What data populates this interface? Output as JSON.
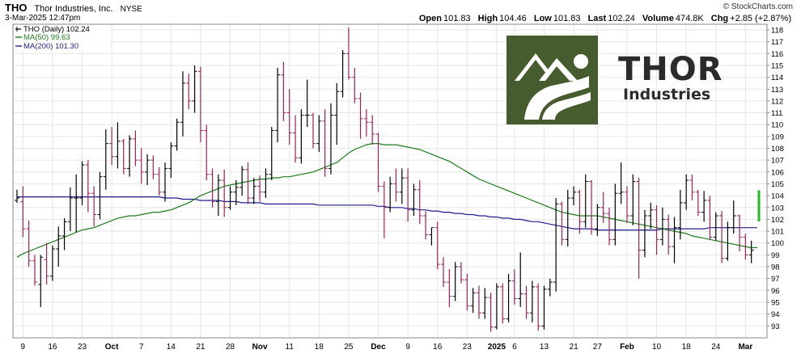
{
  "header": {
    "symbol": "THO",
    "company": "Thor Industries, Inc.",
    "exchange": "NYSE",
    "datetime": "3-Mar-2025 12:47pm",
    "copyright": "© StockCharts.com",
    "open_label": "Open",
    "open": "101.83",
    "high_label": "High",
    "high": "104.46",
    "low_label": "Low",
    "low": "101.83",
    "last_label": "Last",
    "last": "102.24",
    "volume_label": "Volume",
    "volume": "474.8K",
    "chg_label": "Chg",
    "chg": "+2.85 (+2.87%)"
  },
  "legend": {
    "price": "THO (Daily) 102.24",
    "ma50": "MA(50) 99.63",
    "ma200": "MA(200) 101.30"
  },
  "logo": {
    "word": "THOR",
    "sub": "Industries"
  },
  "colors": {
    "up": "#000000",
    "down": "#a0205a",
    "ma50": "#1e7a1e",
    "ma200": "#1f1f8c",
    "last_marker": "#22bb22",
    "logo_green": "#465c2f"
  },
  "chart_data": {
    "type": "ohlc",
    "ylim": [
      92,
      118.5
    ],
    "y_ticks": [
      93,
      94,
      95,
      96,
      97,
      98,
      99,
      100,
      101,
      102,
      103,
      104,
      105,
      106,
      107,
      108,
      109,
      110,
      111,
      112,
      113,
      114,
      115,
      116,
      117,
      118
    ],
    "x_labels": [
      "9",
      "16",
      "23",
      "Oct",
      "7",
      "14",
      "21",
      "28",
      "Nov",
      "11",
      "18",
      "25",
      "Dec",
      "9",
      "16",
      "23",
      "2025",
      "6",
      "13",
      "21",
      "27",
      "Feb",
      "10",
      "18",
      "24",
      "Mar"
    ],
    "x_label_bars": [
      1,
      6,
      11,
      16,
      21,
      26,
      31,
      36,
      41,
      46,
      51,
      56,
      61,
      66,
      71,
      76,
      81,
      84,
      89,
      94,
      98,
      103,
      108,
      113,
      118,
      123
    ],
    "bold_labels": [
      "Oct",
      "Nov",
      "Dec",
      "2025",
      "Feb",
      "Mar"
    ],
    "bars": [
      [
        103.6,
        104.5,
        103.4,
        103.8
      ],
      [
        103.5,
        104.8,
        100.5,
        101.2
      ],
      [
        101.2,
        101.9,
        98.0,
        98.5
      ],
      [
        98.5,
        99.0,
        96.4,
        96.7
      ],
      [
        96.5,
        99.0,
        94.6,
        98.8
      ],
      [
        98.6,
        100.0,
        96.5,
        97.2
      ],
      [
        97.2,
        99.8,
        96.8,
        99.5
      ],
      [
        99.5,
        101.4,
        98.0,
        100.6
      ],
      [
        100.6,
        102.1,
        99.4,
        101.8
      ],
      [
        101.8,
        104.7,
        101.0,
        103.8
      ],
      [
        103.8,
        105.8,
        100.9,
        103.8
      ],
      [
        103.8,
        106.9,
        103.2,
        106.6
      ],
      [
        106.6,
        107.0,
        102.6,
        104.2
      ],
      [
        104.2,
        104.8,
        101.4,
        102.4
      ],
      [
        102.4,
        106.0,
        102.0,
        105.6
      ],
      [
        105.6,
        109.6,
        104.5,
        108.4
      ],
      [
        108.4,
        109.8,
        106.6,
        107.3
      ],
      [
        107.3,
        110.2,
        106.3,
        108.6
      ],
      [
        108.6,
        108.8,
        105.8,
        106.3
      ],
      [
        106.3,
        109.1,
        105.6,
        108.8
      ],
      [
        108.8,
        109.5,
        106.5,
        107.0
      ],
      [
        107.0,
        108.0,
        105.0,
        106.0
      ],
      [
        106.0,
        107.5,
        104.9,
        107.0
      ],
      [
        107.0,
        107.4,
        105.4,
        105.8
      ],
      [
        105.8,
        106.4,
        104.0,
        104.3
      ],
      [
        104.3,
        106.8,
        103.5,
        106.3
      ],
      [
        106.3,
        108.5,
        105.5,
        108.2
      ],
      [
        108.2,
        110.5,
        107.8,
        110.2
      ],
      [
        110.2,
        114.5,
        109.0,
        113.5
      ],
      [
        113.5,
        114.3,
        111.3,
        112.0
      ],
      [
        112.0,
        115.0,
        111.0,
        114.5
      ],
      [
        114.5,
        114.9,
        108.5,
        109.5
      ],
      [
        109.5,
        110.0,
        105.3,
        105.8
      ],
      [
        105.8,
        106.3,
        103.0,
        103.5
      ],
      [
        103.5,
        105.8,
        102.3,
        105.3
      ],
      [
        105.3,
        106.2,
        102.2,
        103.0
      ],
      [
        103.0,
        104.8,
        102.8,
        104.3
      ],
      [
        104.3,
        105.3,
        103.2,
        104.7
      ],
      [
        104.7,
        106.5,
        104.0,
        106.2
      ],
      [
        106.2,
        106.8,
        103.3,
        103.8
      ],
      [
        103.8,
        105.5,
        103.3,
        104.8
      ],
      [
        104.8,
        105.7,
        103.5,
        104.3
      ],
      [
        104.3,
        106.3,
        103.8,
        105.8
      ],
      [
        105.8,
        109.8,
        105.3,
        109.5
      ],
      [
        109.5,
        114.8,
        108.5,
        114.2
      ],
      [
        114.2,
        115.3,
        110.3,
        111.0
      ],
      [
        111.0,
        113.0,
        108.3,
        109.3
      ],
      [
        109.3,
        110.8,
        106.8,
        107.2
      ],
      [
        107.2,
        111.3,
        106.7,
        110.8
      ],
      [
        110.8,
        113.8,
        109.8,
        110.8
      ],
      [
        110.8,
        111.0,
        108.0,
        108.4
      ],
      [
        108.4,
        110.8,
        107.7,
        110.3
      ],
      [
        110.3,
        111.3,
        105.6,
        106.3
      ],
      [
        106.3,
        111.8,
        105.8,
        110.8
      ],
      [
        110.8,
        113.5,
        108.3,
        112.8
      ],
      [
        112.8,
        116.3,
        112.3,
        116.0
      ],
      [
        116.0,
        118.2,
        113.8,
        114.0
      ],
      [
        114.0,
        114.8,
        111.8,
        112.2
      ],
      [
        112.2,
        112.7,
        108.8,
        110.5
      ],
      [
        110.5,
        111.3,
        109.0,
        110.2
      ],
      [
        110.2,
        110.8,
        108.3,
        109.2
      ],
      [
        109.2,
        109.3,
        104.3,
        104.8
      ],
      [
        104.8,
        105.2,
        100.4,
        103.0
      ],
      [
        103.0,
        105.6,
        102.6,
        105.0
      ],
      [
        105.0,
        106.3,
        103.5,
        104.3
      ],
      [
        104.3,
        106.3,
        103.3,
        105.5
      ],
      [
        105.5,
        106.3,
        101.8,
        102.8
      ],
      [
        102.8,
        105.0,
        102.3,
        104.5
      ],
      [
        104.5,
        105.3,
        101.6,
        102.3
      ],
      [
        102.3,
        102.7,
        100.3,
        100.7
      ],
      [
        100.7,
        101.3,
        99.8,
        101.3
      ],
      [
        101.3,
        101.8,
        97.8,
        98.2
      ],
      [
        98.2,
        98.8,
        96.3,
        96.7
      ],
      [
        96.7,
        97.8,
        94.6,
        95.5
      ],
      [
        95.5,
        98.4,
        95.1,
        98.0
      ],
      [
        98.0,
        98.4,
        96.6,
        96.9
      ],
      [
        96.9,
        97.4,
        94.3,
        94.7
      ],
      [
        94.7,
        96.2,
        94.1,
        95.8
      ],
      [
        95.8,
        96.4,
        93.6,
        94.1
      ],
      [
        94.1,
        96.2,
        93.6,
        95.4
      ],
      [
        95.4,
        95.8,
        92.5,
        92.9
      ],
      [
        92.9,
        96.6,
        92.7,
        96.3
      ],
      [
        96.3,
        96.6,
        93.2,
        93.6
      ],
      [
        93.6,
        97.4,
        93.3,
        96.8
      ],
      [
        96.8,
        97.8,
        94.8,
        95.3
      ],
      [
        95.3,
        99.2,
        94.6,
        95.7
      ],
      [
        95.7,
        96.4,
        93.6,
        94.1
      ],
      [
        94.1,
        96.8,
        93.3,
        96.3
      ],
      [
        96.3,
        96.6,
        92.6,
        93.0
      ],
      [
        93.0,
        96.4,
        92.7,
        96.1
      ],
      [
        96.1,
        97.0,
        95.5,
        96.7
      ],
      [
        96.7,
        103.8,
        95.9,
        103.3
      ],
      [
        103.3,
        103.5,
        99.8,
        100.3
      ],
      [
        100.3,
        104.5,
        99.7,
        103.8
      ],
      [
        103.8,
        104.8,
        103.2,
        104.3
      ],
      [
        104.3,
        104.5,
        100.8,
        101.8
      ],
      [
        101.8,
        105.8,
        101.3,
        105.2
      ],
      [
        105.2,
        105.3,
        100.7,
        101.2
      ],
      [
        101.2,
        103.3,
        100.6,
        103.0
      ],
      [
        103.0,
        104.3,
        101.7,
        102.5
      ],
      [
        102.5,
        103.0,
        99.8,
        100.3
      ],
      [
        100.3,
        105.0,
        99.8,
        104.2
      ],
      [
        104.2,
        106.8,
        103.3,
        104.3
      ],
      [
        104.3,
        104.8,
        101.7,
        102.3
      ],
      [
        102.3,
        105.8,
        101.5,
        105.2
      ],
      [
        105.2,
        105.5,
        97.0,
        99.4
      ],
      [
        99.4,
        102.8,
        98.8,
        102.3
      ],
      [
        102.3,
        103.4,
        101.2,
        102.8
      ],
      [
        102.8,
        103.2,
        99.0,
        100.3
      ],
      [
        100.3,
        103.0,
        99.8,
        102.0
      ],
      [
        102.0,
        102.4,
        99.0,
        99.7
      ],
      [
        99.7,
        102.2,
        98.3,
        101.3
      ],
      [
        101.3,
        104.5,
        100.3,
        103.4
      ],
      [
        103.4,
        105.8,
        102.8,
        105.3
      ],
      [
        105.3,
        105.8,
        103.6,
        104.3
      ],
      [
        104.3,
        104.5,
        102.3,
        102.6
      ],
      [
        102.6,
        104.4,
        101.8,
        103.6
      ],
      [
        103.6,
        104.0,
        100.3,
        100.5
      ],
      [
        100.5,
        102.6,
        100.2,
        102.3
      ],
      [
        102.3,
        102.7,
        98.3,
        98.7
      ],
      [
        98.7,
        101.8,
        98.5,
        101.3
      ],
      [
        101.3,
        103.6,
        100.8,
        102.3
      ],
      [
        102.3,
        102.4,
        99.3,
        100.5
      ],
      [
        100.5,
        100.8,
        98.6,
        99.0
      ],
      [
        99.0,
        100.2,
        98.3,
        99.4
      ]
    ],
    "ma50": [
      98.8,
      99.1,
      99.3,
      99.5,
      99.7,
      99.9,
      100.1,
      100.3,
      100.5,
      100.7,
      100.9,
      101.1,
      101.2,
      101.3,
      101.5,
      101.7,
      101.9,
      102.1,
      102.2,
      102.3,
      102.3,
      102.4,
      102.5,
      102.6,
      102.6,
      102.7,
      102.8,
      103.0,
      103.2,
      103.4,
      103.7,
      104.0,
      104.2,
      104.4,
      104.6,
      104.8,
      104.9,
      105.0,
      105.1,
      105.2,
      105.3,
      105.4,
      105.4,
      105.5,
      105.5,
      105.6,
      105.6,
      105.7,
      105.8,
      105.9,
      106.0,
      106.2,
      106.4,
      106.6,
      106.8,
      107.2,
      107.6,
      107.9,
      108.1,
      108.3,
      108.4,
      108.4,
      108.3,
      108.3,
      108.3,
      108.2,
      108.1,
      108.0,
      107.9,
      107.7,
      107.5,
      107.3,
      107.1,
      106.9,
      106.6,
      106.3,
      106.0,
      105.7,
      105.4,
      105.2,
      105.0,
      104.8,
      104.6,
      104.4,
      104.2,
      104.0,
      103.8,
      103.6,
      103.4,
      103.2,
      103.0,
      102.8,
      102.6,
      102.5,
      102.4,
      102.3,
      102.3,
      102.3,
      102.3,
      102.2,
      102.1,
      102.0,
      101.9,
      101.8,
      101.7,
      101.6,
      101.5,
      101.4,
      101.3,
      101.2,
      101.1,
      101.0,
      100.9,
      100.8,
      100.6,
      100.5,
      100.4,
      100.3,
      100.2,
      100.1,
      100.0,
      99.9,
      99.8,
      99.7,
      99.6,
      99.63
    ],
    "ma200": [
      103.9,
      103.9,
      103.9,
      103.9,
      103.9,
      103.9,
      103.9,
      103.9,
      103.9,
      103.9,
      103.9,
      103.9,
      103.9,
      103.9,
      103.9,
      103.9,
      103.9,
      103.9,
      103.9,
      103.9,
      103.9,
      103.9,
      103.9,
      103.9,
      103.9,
      103.8,
      103.8,
      103.8,
      103.7,
      103.7,
      103.7,
      103.6,
      103.6,
      103.6,
      103.6,
      103.5,
      103.5,
      103.5,
      103.4,
      103.4,
      103.4,
      103.4,
      103.3,
      103.3,
      103.3,
      103.3,
      103.3,
      103.3,
      103.3,
      103.3,
      103.3,
      103.2,
      103.2,
      103.2,
      103.2,
      103.2,
      103.2,
      103.2,
      103.2,
      103.2,
      103.2,
      103.1,
      103.1,
      103.0,
      103.0,
      103.0,
      102.9,
      102.9,
      102.8,
      102.8,
      102.7,
      102.7,
      102.6,
      102.6,
      102.5,
      102.5,
      102.4,
      102.4,
      102.3,
      102.3,
      102.2,
      102.2,
      102.1,
      102.1,
      102.0,
      102.0,
      101.9,
      101.8,
      101.8,
      101.7,
      101.6,
      101.5,
      101.4,
      101.3,
      101.2,
      101.2,
      101.2,
      101.2,
      101.1,
      101.1,
      101.1,
      101.1,
      101.1,
      101.1,
      101.1,
      101.1,
      101.1,
      101.1,
      101.1,
      101.2,
      101.2,
      101.2,
      101.2,
      101.2,
      101.2,
      101.2,
      101.2,
      101.3,
      101.3,
      101.3,
      101.3,
      101.3,
      101.3,
      101.3,
      101.3,
      101.3
    ],
    "last_bar": {
      "low": 101.83,
      "high": 104.46,
      "close": 102.24
    }
  }
}
